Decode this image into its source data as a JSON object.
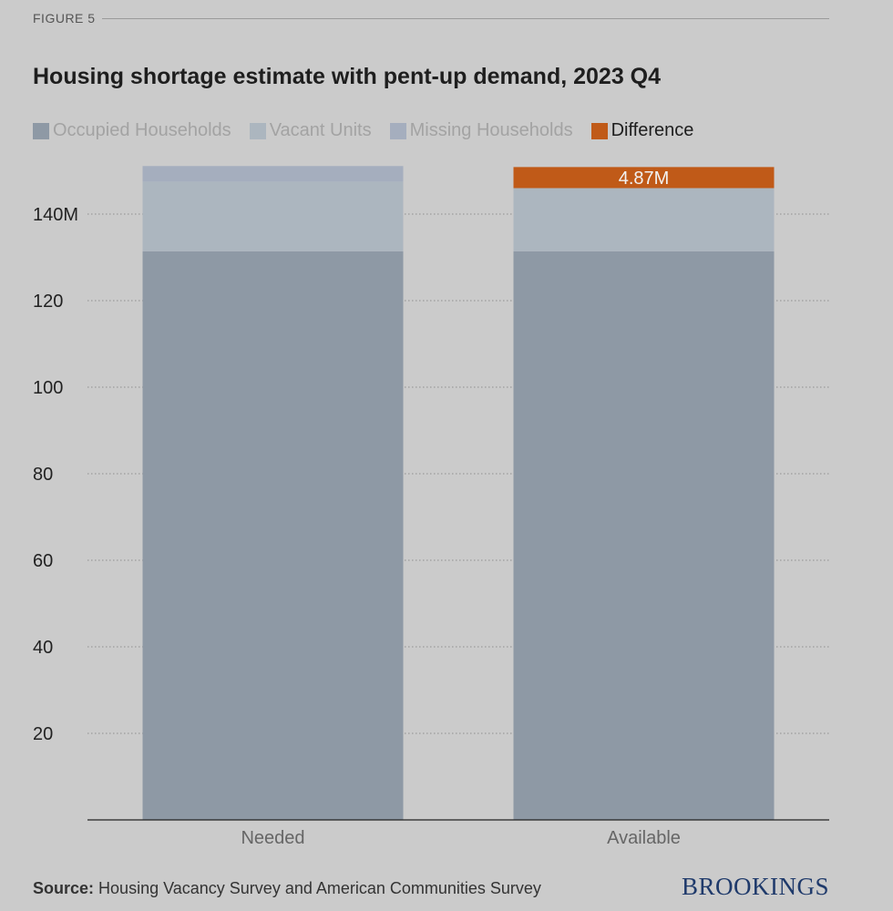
{
  "figure_label": "FIGURE 5",
  "source": {
    "label": "Source:",
    "text": "Housing Vacancy Survey and American Communities Survey"
  },
  "brand": "BROOKINGS",
  "colors": {
    "occupied": "#8e99a5",
    "vacant": "#acb6bf",
    "missing": "#a5aebe",
    "difference": "#c05a18",
    "background": "#cbcbcb"
  },
  "legend": [
    {
      "key": "occupied",
      "label": "Occupied Households",
      "state": "muted"
    },
    {
      "key": "vacant",
      "label": "Vacant Units",
      "state": "muted"
    },
    {
      "key": "missing",
      "label": "Missing Households",
      "state": "muted"
    },
    {
      "key": "difference",
      "label": "Difference",
      "state": "active"
    }
  ],
  "chart_data": {
    "type": "bar",
    "stacked": true,
    "title": "Housing shortage estimate with pent-up demand, 2023 Q4",
    "categories": [
      "Needed",
      "Available"
    ],
    "series": [
      {
        "name": "Occupied Households",
        "key": "occupied",
        "values": [
          131.4,
          131.4
        ]
      },
      {
        "name": "Vacant Units",
        "key": "vacant",
        "values": [
          16.1,
          14.6
        ]
      },
      {
        "name": "Missing Households",
        "key": "missing",
        "values": [
          3.6,
          0
        ]
      },
      {
        "name": "Difference",
        "key": "difference",
        "values": [
          0,
          4.87
        ]
      }
    ],
    "data_labels": [
      {
        "category": "Available",
        "series": "Difference",
        "text": "4.87M"
      }
    ],
    "y_ticks": [
      {
        "value": 20,
        "label": "20"
      },
      {
        "value": 40,
        "label": "40"
      },
      {
        "value": 60,
        "label": "60"
      },
      {
        "value": 80,
        "label": "80"
      },
      {
        "value": 100,
        "label": "100"
      },
      {
        "value": 120,
        "label": "120"
      },
      {
        "value": 140,
        "label": "140M"
      }
    ],
    "ylim": [
      0,
      151
    ],
    "grid": true,
    "xlabel": "",
    "ylabel": ""
  }
}
